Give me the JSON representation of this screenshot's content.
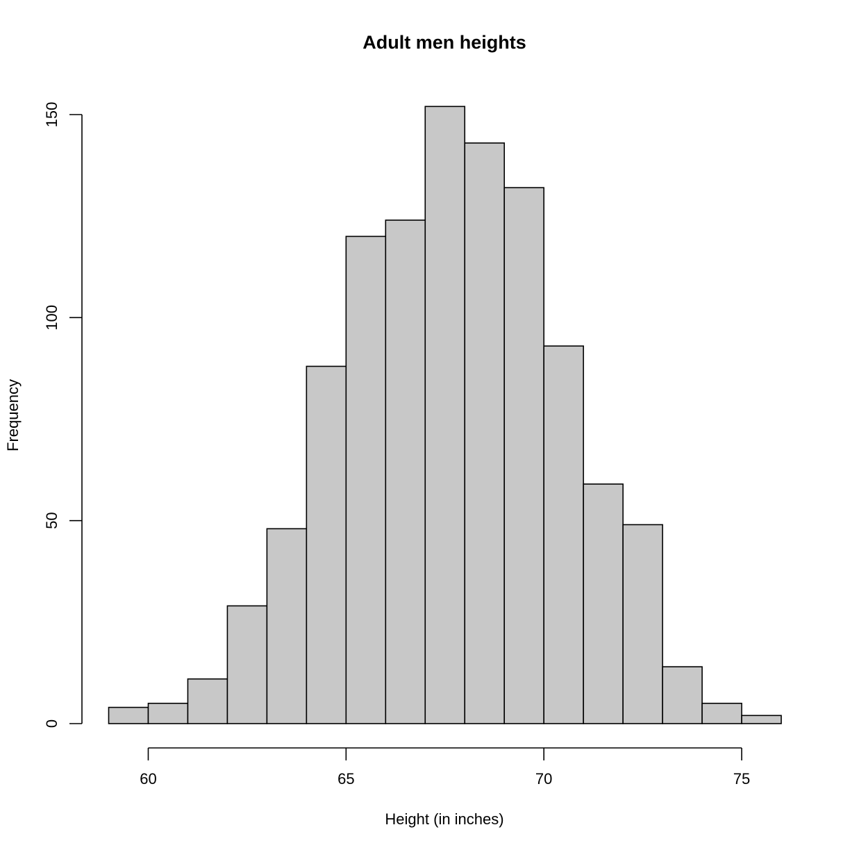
{
  "chart_data": {
    "type": "bar",
    "title": "Adult men heights",
    "xlabel": "Height (in inches)",
    "ylabel": "Frequency",
    "bin_edges": [
      59,
      60,
      61,
      62,
      63,
      64,
      65,
      66,
      67,
      68,
      69,
      70,
      71,
      72,
      73,
      74,
      75,
      76
    ],
    "values": [
      4,
      5,
      11,
      29,
      48,
      88,
      120,
      124,
      152,
      143,
      132,
      93,
      59,
      49,
      14,
      5,
      2
    ],
    "x_ticks": [
      60,
      65,
      70,
      75
    ],
    "y_ticks": [
      0,
      50,
      100,
      150
    ],
    "xlim": [
      59,
      76
    ],
    "ylim": [
      0,
      150
    ],
    "grid": false,
    "legend": "none",
    "colors": {
      "bar_fill": "#c8c8c8",
      "bar_stroke": "#000000"
    }
  }
}
